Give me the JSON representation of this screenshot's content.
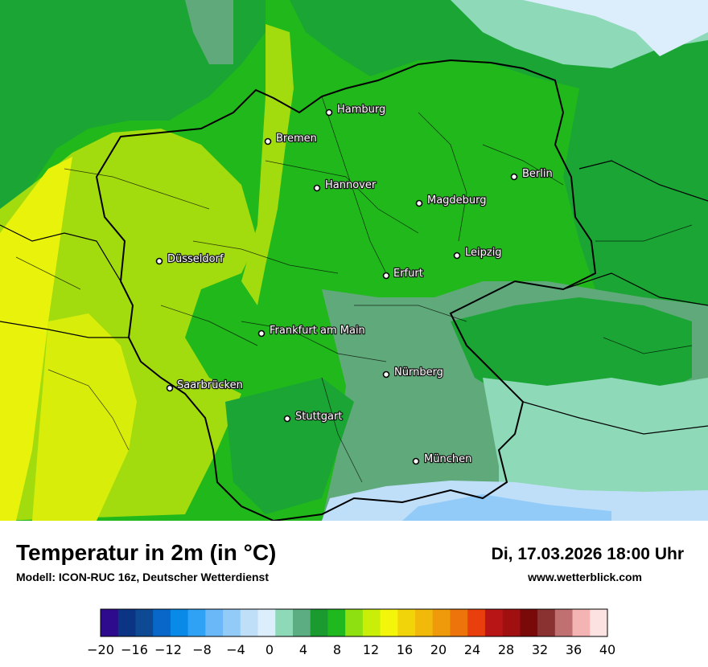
{
  "map": {
    "cities": [
      {
        "name": "Hamburg"
      },
      {
        "name": "Bremen"
      },
      {
        "name": "Hannover"
      },
      {
        "name": "Berlin"
      },
      {
        "name": "Magdeburg"
      },
      {
        "name": "Leipzig"
      },
      {
        "name": "Düsseldorf"
      },
      {
        "name": "Erfurt"
      },
      {
        "name": "Frankfurt am Main"
      },
      {
        "name": "Nürnberg"
      },
      {
        "name": "Saarbrücken"
      },
      {
        "name": "Stuttgart"
      },
      {
        "name": "München"
      }
    ]
  },
  "footer": {
    "title": "Temperatur in 2m (in °C)",
    "model": "Modell: ICON-RUC 16z, Deutscher Wetterdienst",
    "datetime": "Di, 17.03.2026 18:00 Uhr",
    "website": "www.wetterblick.com"
  },
  "legend": {
    "min": -20,
    "max": 40,
    "tick_labels": [
      "−20",
      "−16",
      "−12",
      "−8",
      "−4",
      "0",
      "4",
      "8",
      "12",
      "16",
      "20",
      "24",
      "28",
      "32",
      "36",
      "40"
    ],
    "colors": [
      "#2e0b8c",
      "#0b3484",
      "#0e4a94",
      "#0867c8",
      "#0a8ae8",
      "#2fa2f5",
      "#6ab8f7",
      "#93cbf8",
      "#bfdff9",
      "#dcedfb",
      "#8ed9b8",
      "#5cae82",
      "#1a9a2f",
      "#1fb81f",
      "#8ee010",
      "#c9ef08",
      "#f3f50a",
      "#f2d40a",
      "#f1b90a",
      "#ef9a0a",
      "#ed730b",
      "#e83f0c",
      "#b81616",
      "#a01010",
      "#7a0a0a",
      "#8a3232",
      "#c07070",
      "#f4b4b4",
      "#fde2e2"
    ]
  }
}
